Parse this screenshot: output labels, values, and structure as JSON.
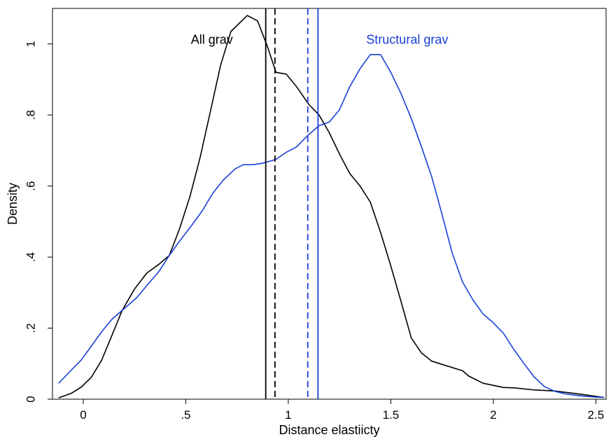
{
  "chart_data": {
    "type": "line",
    "xlabel": "Distance elastiicty",
    "ylabel": "Density",
    "xlim": [
      -0.15,
      2.55
    ],
    "ylim": [
      0,
      1.1
    ],
    "xticks": [
      {
        "value": 0,
        "label": "0"
      },
      {
        "value": 0.5,
        "label": ".5"
      },
      {
        "value": 1,
        "label": "1"
      },
      {
        "value": 1.5,
        "label": "1.5"
      },
      {
        "value": 2,
        "label": "2"
      },
      {
        "value": 2.5,
        "label": "2.5"
      }
    ],
    "yticks": [
      {
        "value": 0,
        "label": "0"
      },
      {
        "value": 0.2,
        "label": ".2"
      },
      {
        "value": 0.4,
        "label": ".4"
      },
      {
        "value": 0.6,
        "label": ".6"
      },
      {
        "value": 0.8,
        "label": ".8"
      },
      {
        "value": 1,
        "label": "1"
      }
    ],
    "grid": false,
    "series": [
      {
        "name": "All grav",
        "color": "#000000",
        "label_at": {
          "x": 0.73,
          "y": 1.0
        },
        "x": [
          -0.12,
          -0.06,
          -0.01,
          0.04,
          0.09,
          0.14,
          0.19,
          0.25,
          0.31,
          0.37,
          0.42,
          0.47,
          0.52,
          0.57,
          0.62,
          0.67,
          0.72,
          0.8,
          0.85,
          0.9,
          0.94,
          0.99,
          1.04,
          1.1,
          1.15,
          1.2,
          1.25,
          1.3,
          1.35,
          1.4,
          1.45,
          1.5,
          1.55,
          1.6,
          1.65,
          1.7,
          1.75,
          1.85,
          1.88,
          1.95,
          2.05,
          2.1,
          2.2,
          2.3,
          2.4,
          2.5,
          2.54
        ],
        "y": [
          0.004,
          0.016,
          0.034,
          0.062,
          0.11,
          0.18,
          0.25,
          0.31,
          0.355,
          0.38,
          0.405,
          0.48,
          0.57,
          0.68,
          0.81,
          0.94,
          1.035,
          1.08,
          1.065,
          0.99,
          0.92,
          0.915,
          0.88,
          0.83,
          0.8,
          0.75,
          0.69,
          0.635,
          0.6,
          0.555,
          0.47,
          0.375,
          0.275,
          0.172,
          0.13,
          0.107,
          0.098,
          0.08,
          0.065,
          0.045,
          0.033,
          0.032,
          0.026,
          0.023,
          0.016,
          0.008,
          0.005
        ]
      },
      {
        "name": "Structural grav",
        "color": "#1a3fd6",
        "label_at": {
          "x": 1.58,
          "y": 1.0
        },
        "x": [
          -0.12,
          -0.07,
          -0.01,
          0.04,
          0.09,
          0.14,
          0.2,
          0.26,
          0.31,
          0.37,
          0.42,
          0.47,
          0.53,
          0.58,
          0.63,
          0.68,
          0.74,
          0.78,
          0.83,
          0.88,
          0.94,
          0.99,
          1.04,
          1.1,
          1.15,
          1.2,
          1.25,
          1.3,
          1.35,
          1.4,
          1.45,
          1.5,
          1.55,
          1.6,
          1.65,
          1.7,
          1.75,
          1.8,
          1.85,
          1.9,
          1.95,
          2.0,
          2.05,
          2.1,
          2.15,
          2.2,
          2.25,
          2.3,
          2.35,
          2.4,
          2.45,
          2.5,
          2.54
        ],
        "y": [
          0.045,
          0.075,
          0.11,
          0.15,
          0.19,
          0.225,
          0.255,
          0.285,
          0.32,
          0.36,
          0.405,
          0.445,
          0.49,
          0.53,
          0.578,
          0.615,
          0.648,
          0.66,
          0.66,
          0.665,
          0.675,
          0.695,
          0.71,
          0.745,
          0.77,
          0.78,
          0.815,
          0.88,
          0.93,
          0.97,
          0.97,
          0.92,
          0.86,
          0.79,
          0.71,
          0.625,
          0.52,
          0.41,
          0.33,
          0.28,
          0.24,
          0.215,
          0.185,
          0.14,
          0.1,
          0.062,
          0.035,
          0.022,
          0.015,
          0.011,
          0.008,
          0.006,
          0.005
        ]
      }
    ],
    "vlines": [
      {
        "series": "All grav",
        "x": 0.89,
        "style": "solid",
        "color": "#000000"
      },
      {
        "series": "All grav",
        "x": 0.935,
        "style": "dashed",
        "color": "#000000"
      },
      {
        "series": "Structural grav",
        "x": 1.095,
        "style": "dashed",
        "color": "#1a3fd6"
      },
      {
        "series": "Structural grav",
        "x": 1.145,
        "style": "solid",
        "color": "#1a3fd6"
      }
    ]
  }
}
